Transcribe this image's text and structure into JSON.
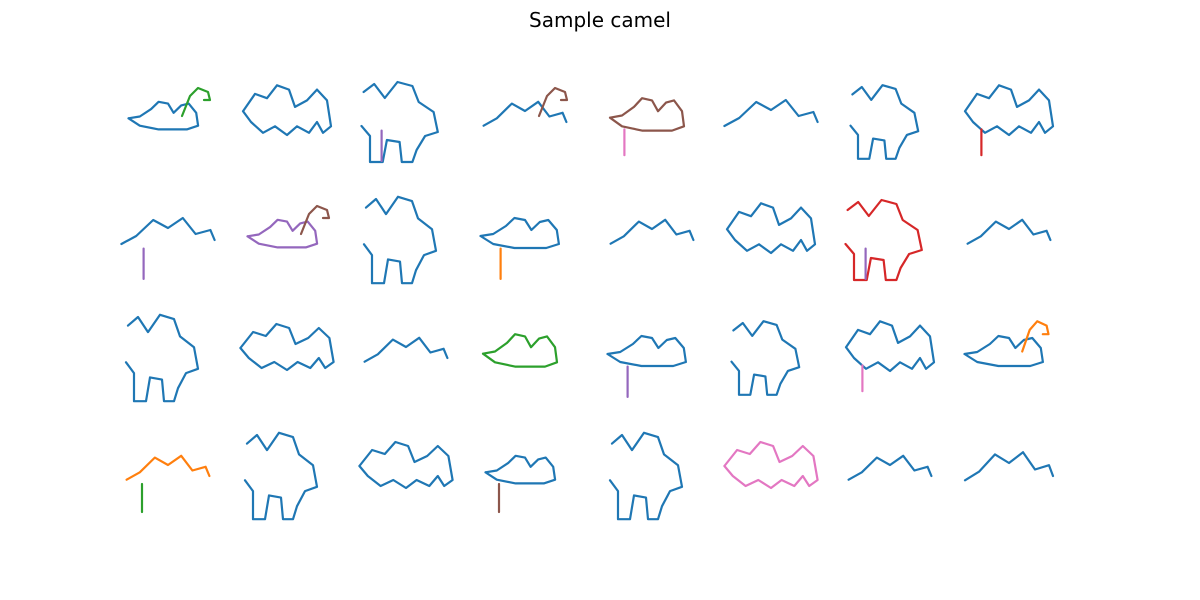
{
  "figure": {
    "title": "Sample camel",
    "rows": 4,
    "columns": 8,
    "stroke_colors": [
      "#1f77b4",
      "#ff7f0e",
      "#2ca02c",
      "#d62728",
      "#9467bd",
      "#8c564b",
      "#e377c2"
    ]
  }
}
